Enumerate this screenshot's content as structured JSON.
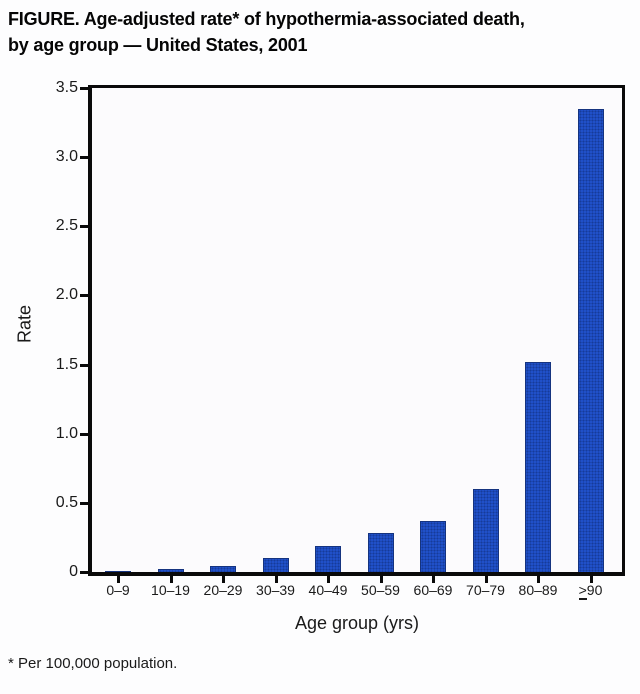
{
  "title": {
    "line1": "FIGURE. Age-adjusted rate* of hypothermia-associated death,",
    "line2": "by age group — United States, 2001"
  },
  "footnote": "* Per 100,000 population.",
  "chart_data": {
    "type": "bar",
    "title": "FIGURE. Age-adjusted rate* of hypothermia-associated death, by age group — United States, 2001",
    "xlabel": "Age group (yrs)",
    "ylabel": "Rate",
    "categories": [
      "0–9",
      "10–19",
      "20–29",
      "30–39",
      "40–49",
      "50–59",
      "60–69",
      "70–79",
      "80–89",
      "≥90"
    ],
    "values": [
      0.01,
      0.02,
      0.04,
      0.1,
      0.19,
      0.28,
      0.37,
      0.6,
      1.52,
      3.35
    ],
    "ylim": [
      0,
      3.5
    ],
    "yticks": [
      0,
      0.5,
      1.0,
      1.5,
      2.0,
      2.5,
      3.0,
      3.5
    ],
    "ytick_labels": [
      "0",
      "0.5",
      "1.0",
      "1.5",
      "2.0",
      "2.5",
      "3.0",
      "3.5"
    ],
    "grid": false,
    "legend": null,
    "bar_color": "#2050c8",
    "axis_color": "#0a0a0a",
    "footnote": "* Per 100,000 population."
  }
}
